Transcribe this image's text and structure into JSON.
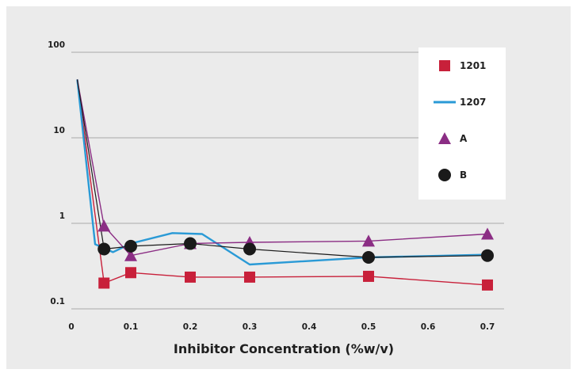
{
  "chart_data": {
    "type": "line",
    "title": "",
    "xlabel": "Inhibitor Concentration (%w/v)",
    "ylabel": "",
    "x_ticks": [
      "0",
      "0.1",
      "0.2",
      "0.3",
      "0.4",
      "0.5",
      "0.6",
      "0.7"
    ],
    "x_tick_values": [
      0,
      0.1,
      0.2,
      0.3,
      0.4,
      0.5,
      0.6,
      0.7
    ],
    "y_ticks": [
      "0.1",
      "1",
      "10",
      "100"
    ],
    "y_tick_values": [
      0.1,
      1,
      10,
      100
    ],
    "xlim": [
      0,
      0.72
    ],
    "ylim": [
      0.1,
      100
    ],
    "y_scale": "log",
    "grid": "horizontal",
    "legend_position": "top-right",
    "series": [
      {
        "name": "1201",
        "color": "#c8203a",
        "marker": "square",
        "line": true,
        "x": [
          0.01,
          0.055,
          0.1,
          0.2,
          0.3,
          0.5,
          0.7
        ],
        "y": [
          48,
          0.2,
          0.265,
          0.235,
          0.235,
          0.24,
          0.19
        ]
      },
      {
        "name": "1207",
        "color": "#2a9ad6",
        "marker": "none",
        "line": true,
        "x": [
          0.01,
          0.04,
          0.07,
          0.1,
          0.17,
          0.22,
          0.3,
          0.5,
          0.7
        ],
        "y": [
          48,
          0.57,
          0.46,
          0.58,
          0.77,
          0.75,
          0.33,
          0.4,
          0.43
        ]
      },
      {
        "name": "A",
        "color": "#8b2d84",
        "marker": "triangle",
        "line": true,
        "x": [
          0.01,
          0.055,
          0.1,
          0.2,
          0.3,
          0.5,
          0.7
        ],
        "y": [
          48,
          0.93,
          0.42,
          0.58,
          0.6,
          0.62,
          0.75
        ]
      },
      {
        "name": "B",
        "color": "#1a1a1a",
        "marker": "circle",
        "line": true,
        "x": [
          0.01,
          0.055,
          0.1,
          0.2,
          0.3,
          0.5,
          0.7
        ],
        "y": [
          48,
          0.5,
          0.54,
          0.58,
          0.5,
          0.4,
          0.42
        ]
      }
    ]
  }
}
